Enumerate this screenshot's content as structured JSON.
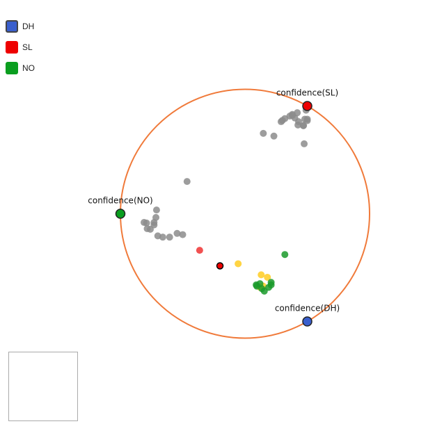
{
  "legend": {
    "items": [
      {
        "label": "DH",
        "color": "#3a5fcd",
        "selected": true
      },
      {
        "label": "SL",
        "color": "#ee0000",
        "selected": false
      },
      {
        "label": "NO",
        "color": "#0a9e1f",
        "selected": false
      }
    ]
  },
  "chart_data": {
    "type": "scatter",
    "title": "",
    "circle_color": "#f07a3a",
    "anchors": [
      {
        "label": "confidence(SL)",
        "color": "#ee0000",
        "x": 0.5,
        "y": 0.866
      },
      {
        "label": "confidence(NO)",
        "color": "#0a9e1f",
        "x": -1.0,
        "y": 0.0
      },
      {
        "label": "confidence(DH)",
        "color": "#3a5fcd",
        "x": 0.5,
        "y": -0.866
      }
    ],
    "series": [
      {
        "color": "#8c8c8c",
        "points": [
          [
            0.49,
            0.832
          ],
          [
            0.42,
            0.812
          ],
          [
            0.38,
            0.798
          ],
          [
            0.36,
            0.785
          ],
          [
            0.32,
            0.765
          ],
          [
            0.3,
            0.75
          ],
          [
            0.29,
            0.74
          ],
          [
            0.38,
            0.79
          ],
          [
            0.4,
            0.77
          ],
          [
            0.43,
            0.74
          ],
          [
            0.48,
            0.76
          ],
          [
            0.5,
            0.76
          ],
          [
            0.5,
            0.748
          ],
          [
            0.425,
            0.713
          ],
          [
            0.468,
            0.708
          ],
          [
            0.47,
            0.708
          ],
          [
            0.147,
            0.646
          ],
          [
            0.232,
            0.624
          ],
          [
            0.475,
            0.562
          ],
          [
            -0.465,
            0.259
          ],
          [
            -0.71,
            0.03
          ],
          [
            -0.715,
            -0.03
          ],
          [
            -0.73,
            -0.07
          ],
          [
            -0.81,
            -0.07
          ],
          [
            -0.79,
            -0.075
          ],
          [
            -0.785,
            -0.12
          ],
          [
            -0.76,
            -0.125
          ],
          [
            -0.73,
            -0.09
          ],
          [
            -0.7,
            -0.178
          ],
          [
            -0.66,
            -0.188
          ],
          [
            -0.605,
            -0.188
          ],
          [
            -0.545,
            -0.158
          ],
          [
            -0.5,
            -0.168
          ]
        ]
      },
      {
        "color": "#ffcc22",
        "points": [
          [
            -0.055,
            -0.402
          ],
          [
            0.13,
            -0.491
          ],
          [
            0.18,
            -0.511
          ],
          [
            0.145,
            -0.581
          ],
          [
            0.12,
            -0.591
          ]
        ]
      },
      {
        "color": "#1a9a2a",
        "points": [
          [
            0.32,
            -0.328
          ],
          [
            0.12,
            -0.562
          ],
          [
            0.21,
            -0.552
          ],
          [
            0.21,
            -0.572
          ],
          [
            0.09,
            -0.572
          ],
          [
            0.095,
            -0.582
          ],
          [
            0.135,
            -0.602
          ],
          [
            0.19,
            -0.592
          ],
          [
            0.155,
            -0.622
          ]
        ]
      },
      {
        "color": "#ee3333",
        "points": [
          [
            -0.364,
            -0.294
          ]
        ]
      }
    ],
    "highlight_point": {
      "x": -0.201,
      "y": -0.419,
      "color": "#ee0000"
    }
  }
}
